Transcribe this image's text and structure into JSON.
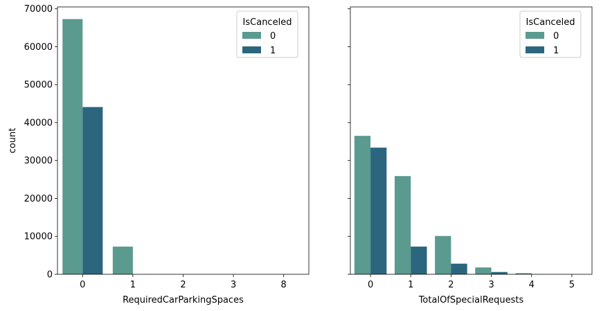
{
  "chart_data": [
    {
      "type": "bar",
      "xlabel": "RequiredCarParkingSpaces",
      "ylabel": "count",
      "categories": [
        "0",
        "1",
        "2",
        "3",
        "8"
      ],
      "ylim": [
        0,
        70500
      ],
      "yticks": [
        0,
        10000,
        20000,
        30000,
        40000,
        50000,
        60000,
        70000
      ],
      "legend": {
        "title": "IsCanceled",
        "placement": "top-right"
      },
      "series": [
        {
          "name": "0",
          "color": "#5a9a8f",
          "values": [
            67300,
            7300,
            20,
            3,
            0
          ]
        },
        {
          "name": "1",
          "color": "#2b657e",
          "values": [
            44100,
            0,
            0,
            0,
            0
          ]
        }
      ]
    },
    {
      "type": "bar",
      "xlabel": "TotalOfSpecialRequests",
      "ylabel": "",
      "categories": [
        "0",
        "1",
        "2",
        "3",
        "4",
        "5"
      ],
      "ylim": [
        0,
        70500
      ],
      "yticks": [
        0,
        10000,
        20000,
        30000,
        40000,
        50000,
        60000,
        70000
      ],
      "legend": {
        "title": "IsCanceled",
        "placement": "top-right"
      },
      "series": [
        {
          "name": "0",
          "color": "#5a9a8f",
          "values": [
            36500,
            25900,
            10100,
            1800,
            300,
            30
          ]
        },
        {
          "name": "1",
          "color": "#2b657e",
          "values": [
            33400,
            7300,
            2800,
            600,
            40,
            10
          ]
        }
      ]
    }
  ]
}
